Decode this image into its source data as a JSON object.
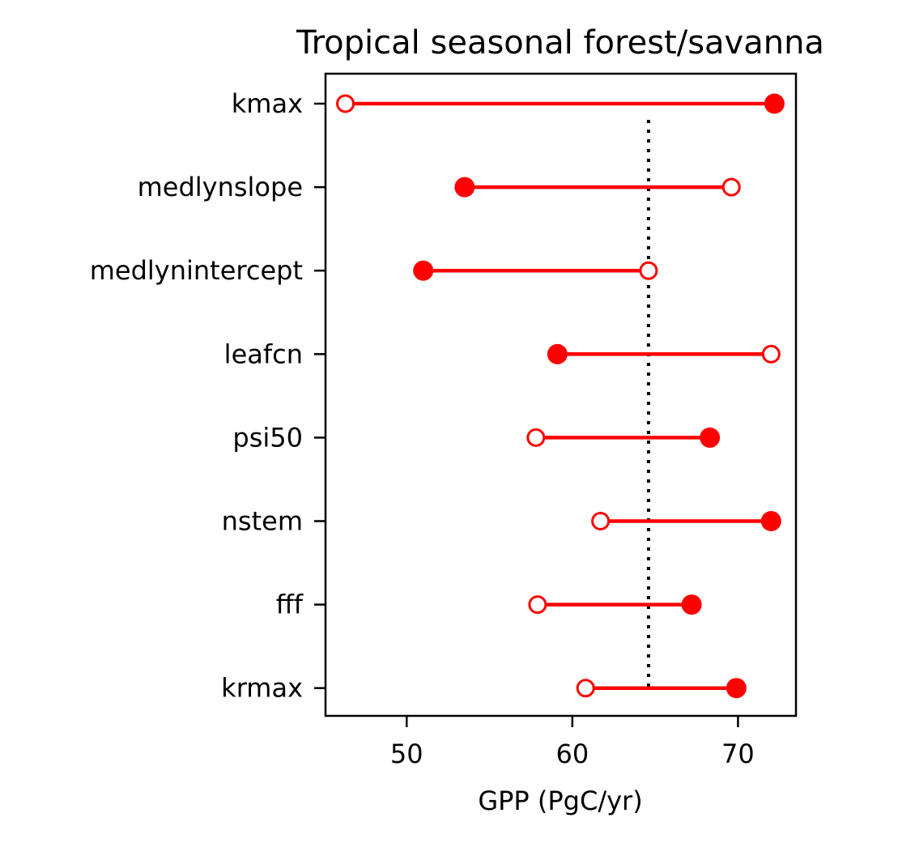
{
  "chart_data": {
    "type": "dumbbell",
    "title": "Tropical seasonal forest/savanna",
    "xlabel": "GPP (PgC/yr)",
    "ylabel": "",
    "xlim": [
      45.1,
      73.5
    ],
    "xticks": [
      50,
      60,
      70
    ],
    "reference_line": {
      "x": 64.6,
      "style": "dotted",
      "color": "#000000"
    },
    "color": "#ff0000",
    "legend": "none",
    "grid": false,
    "categories": [
      "kmax",
      "medlynslope",
      "medlynintercept",
      "leafcn",
      "psi50",
      "nstem",
      "fff",
      "krmax"
    ],
    "series": [
      {
        "marker": "open-circle",
        "values": [
          46.3,
          69.6,
          64.6,
          72.0,
          57.8,
          61.7,
          57.9,
          60.8
        ]
      },
      {
        "marker": "filled-circle",
        "values": [
          72.2,
          53.5,
          51.0,
          59.1,
          68.3,
          72.0,
          67.2,
          69.9
        ]
      }
    ]
  }
}
